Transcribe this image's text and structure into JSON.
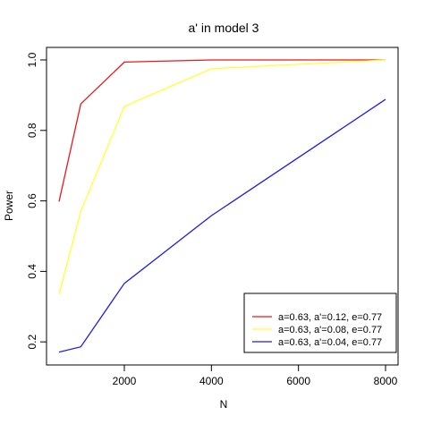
{
  "chart_data": {
    "type": "line",
    "title": "a' in model 3",
    "xlabel": "N",
    "ylabel": "Power",
    "xlim": [
      500,
      8000
    ],
    "ylim": [
      0.17,
      1.0
    ],
    "xticks": [
      2000,
      4000,
      6000,
      8000
    ],
    "yticks": [
      0.2,
      0.4,
      0.6,
      0.8,
      1.0
    ],
    "xtick_labels": [
      "2000",
      "4000",
      "6000",
      "8000"
    ],
    "ytick_labels": [
      "0.2",
      "0.4",
      "0.6",
      "0.8",
      "1.0"
    ],
    "grid": false,
    "legend_position": "bottom-right",
    "x": [
      500,
      1000,
      2000,
      4000,
      8000
    ],
    "series": [
      {
        "name": "a=0.63, a'=0.12, e=0.77",
        "color": "#e41a1c",
        "values": [
          0.598,
          0.875,
          0.994,
          1.0,
          1.0
        ]
      },
      {
        "name": "a=0.63, a'=0.08, e=0.77",
        "color": "#ffff33",
        "values": [
          0.335,
          0.57,
          0.868,
          0.975,
          1.0
        ]
      },
      {
        "name": "a=0.63, a'=0.04, e=0.77",
        "color": "#1f1fe0",
        "values": [
          0.171,
          0.186,
          0.366,
          0.558,
          0.888
        ]
      }
    ]
  }
}
